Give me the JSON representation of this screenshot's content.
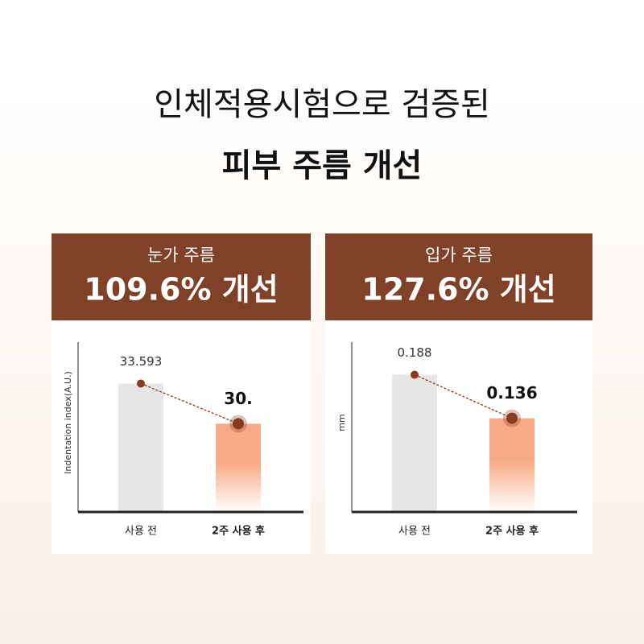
{
  "title": [
    "인체적용시험으로 검증된",
    "피부 주름 개선"
  ],
  "chart_data": [
    {
      "type": "bar",
      "title": "눈가 주름",
      "subtitle": "109.6% 개선",
      "y_label": "Indentation index(A.U.)",
      "categories": [
        "사용 전",
        "2주 사용 후"
      ],
      "values": [
        33.593,
        30
      ],
      "value_labels": [
        "33.593",
        "30."
      ],
      "colors": [
        "#e6e6e6",
        "#f7ab85"
      ],
      "marker_color": "#8b3a1e",
      "ylim": [
        22.1,
        37.3
      ]
    },
    {
      "type": "bar",
      "title": "입가 주름",
      "subtitle": "127.6% 개선",
      "y_label": "mm",
      "categories": [
        "사용 전",
        "2주 사용 후"
      ],
      "values": [
        0.188,
        0.136
      ],
      "value_labels": [
        "0.188",
        "0.136"
      ],
      "colors": [
        "#e6e6e6",
        "#f7ab85"
      ],
      "marker_color": "#8b3a1e",
      "ylim": [
        0.024,
        0.227
      ]
    }
  ]
}
